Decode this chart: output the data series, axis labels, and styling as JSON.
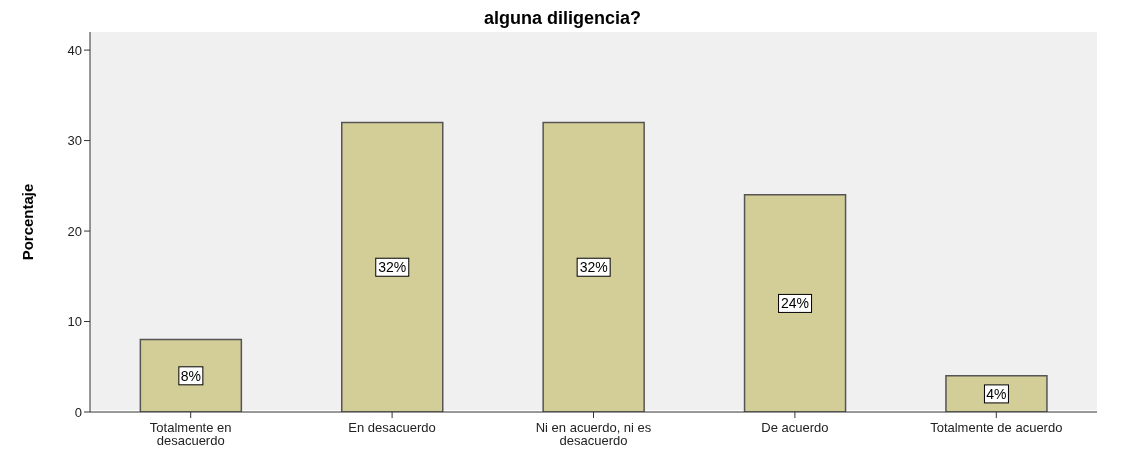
{
  "chart_data": {
    "type": "bar",
    "title": "alguna diligencia?",
    "ylabel": "Porcentaje",
    "categories": [
      "Totalmente en desacuerdo",
      "En desacuerdo",
      "Ni en acuerdo, ni es desacuerdo",
      "De acuerdo",
      "Totalmente de acuerdo"
    ],
    "values": [
      8,
      32,
      32,
      24,
      4
    ],
    "value_labels": [
      "8%",
      "32%",
      "32%",
      "24%",
      "4%"
    ],
    "color": "#d3cd98",
    "ylim": [
      0,
      42
    ],
    "yticks": [
      0,
      10,
      20,
      30,
      40
    ],
    "grid": false,
    "legend": false
  }
}
